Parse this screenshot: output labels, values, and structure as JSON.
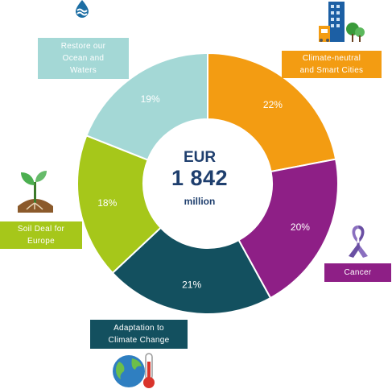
{
  "center": {
    "currency": "EUR",
    "amount": "1 842",
    "unit": "million"
  },
  "colors": {
    "climate_cities": "#f39c12",
    "cancer": "#8e1f86",
    "adaptation": "#13505f",
    "soil": "#a6c71a",
    "ocean": "#a4d8d6"
  },
  "icons": {
    "ocean": "water-drop-waves-icon",
    "cities": "city-buildings-icon",
    "cancer": "awareness-ribbon-icon",
    "adaptation": "globe-thermometer-icon",
    "soil": "seedling-icon"
  },
  "chart_data": {
    "type": "pie",
    "donut": true,
    "categories": [
      "Climate-neutral and Smart Cities",
      "Cancer",
      "Adaptation to Climate Change",
      "Soil Deal for Europe",
      "Restore our Ocean and Waters"
    ],
    "values": [
      22,
      20,
      21,
      18,
      19
    ],
    "value_labels": [
      "22%",
      "20%",
      "21%",
      "18%",
      "19%"
    ],
    "colors": [
      "#f39c12",
      "#8e1f86",
      "#13505f",
      "#a6c71a",
      "#a4d8d6"
    ],
    "label_lines": [
      [
        "Climate-neutral",
        "and Smart Cities"
      ],
      [
        "Cancer"
      ],
      [
        "Adaptation to",
        "Climate Change"
      ],
      [
        "Soil Deal for",
        "Europe"
      ],
      [
        "Restore our",
        "Ocean and",
        "Waters"
      ]
    ]
  }
}
